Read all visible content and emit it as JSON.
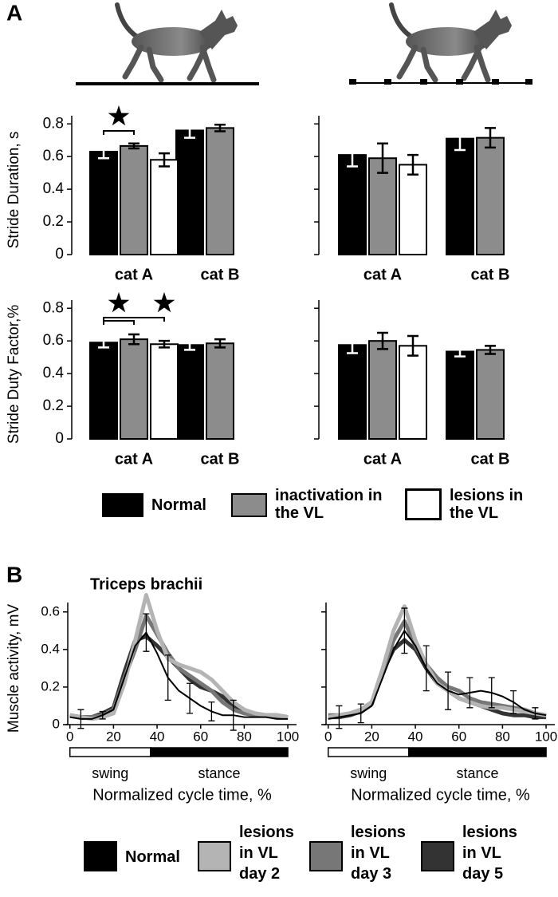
{
  "panel_labels": [
    "A",
    "B"
  ],
  "chart_data": [
    {
      "type": "bar",
      "ylabel": "Stride Duration, s",
      "categories": [
        "cat A",
        "cat B"
      ],
      "ylim": [
        0,
        0.85
      ],
      "yticks": [
        0,
        0.2,
        0.4,
        0.6,
        0.8
      ],
      "series": [
        {
          "name": "Normal",
          "color": "#000000",
          "values": [
            0.63,
            0.76
          ],
          "errors": [
            0.04,
            0.045
          ]
        },
        {
          "name": "inactivation in the VL",
          "color": "#8c8c8c",
          "values": [
            0.665,
            0.775
          ],
          "errors": [
            0.015,
            0.02
          ]
        },
        {
          "name": "lesions in the VL",
          "color": "#ffffff",
          "values": [
            0.58,
            null
          ],
          "errors": [
            0.04,
            null
          ]
        }
      ]
    },
    {
      "type": "bar",
      "categories": [
        "cat A",
        "cat B"
      ],
      "ylim": [
        0,
        0.85
      ],
      "yticks": [
        0,
        0.2,
        0.4,
        0.6,
        0.8
      ],
      "ytick_labels": false,
      "series": [
        {
          "name": "Normal",
          "color": "#000000",
          "values": [
            0.61,
            0.71
          ],
          "errors": [
            0.07,
            0.07
          ]
        },
        {
          "name": "inactivation in the VL",
          "color": "#8c8c8c",
          "values": [
            0.59,
            0.715
          ],
          "errors": [
            0.09,
            0.06
          ]
        },
        {
          "name": "lesions in the VL",
          "color": "#ffffff",
          "values": [
            0.55,
            null
          ],
          "errors": [
            0.06,
            null
          ]
        }
      ]
    },
    {
      "type": "bar",
      "ylabel": "Stride Duty Factor,%",
      "categories": [
        "cat A",
        "cat B"
      ],
      "ylim": [
        0,
        0.85
      ],
      "yticks": [
        0,
        0.2,
        0.4,
        0.6,
        0.8
      ],
      "series": [
        {
          "name": "Normal",
          "color": "#000000",
          "values": [
            0.59,
            0.575
          ],
          "errors": [
            0.03,
            0.03
          ]
        },
        {
          "name": "inactivation in the VL",
          "color": "#8c8c8c",
          "values": [
            0.61,
            0.585
          ],
          "errors": [
            0.03,
            0.025
          ]
        },
        {
          "name": "lesions in the VL",
          "color": "#ffffff",
          "values": [
            0.58,
            null
          ],
          "errors": [
            0.02,
            null
          ]
        }
      ]
    },
    {
      "type": "bar",
      "categories": [
        "cat A",
        "cat B"
      ],
      "ylim": [
        0,
        0.85
      ],
      "yticks": [
        0,
        0.2,
        0.4,
        0.6,
        0.8
      ],
      "ytick_labels": false,
      "series": [
        {
          "name": "Normal",
          "color": "#000000",
          "values": [
            0.575,
            0.535
          ],
          "errors": [
            0.05,
            0.03
          ]
        },
        {
          "name": "inactivation in the VL",
          "color": "#8c8c8c",
          "values": [
            0.6,
            0.545
          ],
          "errors": [
            0.05,
            0.025
          ]
        },
        {
          "name": "lesions in the VL",
          "color": "#ffffff",
          "values": [
            0.57,
            null
          ],
          "errors": [
            0.06,
            null
          ]
        }
      ]
    },
    {
      "type": "line",
      "title": "Triceps brachii",
      "ylabel": "Muscle activity, mV",
      "xlabel": "Normalized cycle time, %",
      "xlim": [
        -1,
        104
      ],
      "xticks": [
        0,
        20,
        40,
        60,
        80,
        100
      ],
      "ylim": [
        0,
        0.65
      ],
      "yticks": [
        0,
        0.2,
        0.4,
        0.6
      ],
      "x": [
        0,
        5,
        10,
        15,
        20,
        25,
        30,
        35,
        40,
        45,
        50,
        55,
        60,
        65,
        70,
        75,
        80,
        85,
        90,
        95,
        100
      ],
      "phases": [
        {
          "label": "swing",
          "start": 0,
          "end": 37,
          "color": "#ffffff"
        },
        {
          "label": "stance",
          "start": 37,
          "end": 100,
          "color": "#000000"
        }
      ],
      "series": [
        {
          "name": "Normal",
          "color": "#000000",
          "width": 2,
          "values": [
            0.04,
            0.03,
            0.03,
            0.05,
            0.08,
            0.25,
            0.42,
            0.49,
            0.38,
            0.25,
            0.18,
            0.14,
            0.1,
            0.07,
            0.05,
            0.05,
            0.04,
            0.04,
            0.04,
            0.03,
            0.03
          ],
          "errors": [
            null,
            0.05,
            null,
            0.02,
            null,
            null,
            null,
            0.1,
            null,
            0.12,
            null,
            0.08,
            null,
            0.05,
            null,
            0.08,
            null,
            null,
            null,
            null,
            null
          ]
        },
        {
          "name": "lesions in VL day 2",
          "color": "#b4b4b4",
          "width": 5,
          "values": [
            0.05,
            0.04,
            0.03,
            0.04,
            0.06,
            0.22,
            0.45,
            0.69,
            0.5,
            0.35,
            0.32,
            0.3,
            0.28,
            0.24,
            0.18,
            0.12,
            0.08,
            0.06,
            0.05,
            0.05,
            0.04
          ]
        },
        {
          "name": "lesions in VL day 3",
          "color": "#777777",
          "width": 5,
          "values": [
            0.05,
            0.04,
            0.04,
            0.05,
            0.08,
            0.25,
            0.4,
            0.58,
            0.48,
            0.38,
            0.3,
            0.26,
            0.22,
            0.18,
            0.12,
            0.08,
            0.06,
            0.05,
            0.05,
            0.04,
            0.04
          ]
        },
        {
          "name": "lesions in VL day 5",
          "color": "#333333",
          "width": 5,
          "values": [
            0.05,
            0.04,
            0.04,
            0.06,
            0.09,
            0.28,
            0.45,
            0.47,
            0.42,
            0.36,
            0.3,
            0.24,
            0.2,
            0.18,
            0.15,
            0.1,
            0.07,
            0.06,
            0.05,
            0.05,
            0.04
          ]
        }
      ]
    },
    {
      "type": "line",
      "xlabel": "Normalized cycle time, %",
      "xlim": [
        -1,
        104
      ],
      "xticks": [
        0,
        20,
        40,
        60,
        80,
        100
      ],
      "ylim": [
        0,
        0.65
      ],
      "yticks": [
        0,
        0.2,
        0.4,
        0.6
      ],
      "ytick_labels": false,
      "x": [
        0,
        5,
        10,
        15,
        20,
        25,
        30,
        35,
        40,
        45,
        50,
        55,
        60,
        65,
        70,
        75,
        80,
        85,
        90,
        95,
        100
      ],
      "phases": [
        {
          "label": "swing",
          "start": 0,
          "end": 37,
          "color": "#ffffff"
        },
        {
          "label": "stance",
          "start": 37,
          "end": 100,
          "color": "#000000"
        }
      ],
      "series": [
        {
          "name": "Normal",
          "color": "#000000",
          "width": 2,
          "values": [
            0.03,
            0.04,
            0.05,
            0.06,
            0.1,
            0.25,
            0.4,
            0.5,
            0.42,
            0.3,
            0.22,
            0.18,
            0.16,
            0.17,
            0.18,
            0.17,
            0.15,
            0.12,
            0.08,
            0.06,
            0.05
          ],
          "errors": [
            null,
            0.06,
            null,
            0.05,
            null,
            null,
            null,
            0.12,
            null,
            0.12,
            null,
            0.1,
            null,
            0.08,
            null,
            0.08,
            null,
            0.06,
            null,
            0.03,
            null
          ]
        },
        {
          "name": "lesions in VL day 2",
          "color": "#b4b4b4",
          "width": 5,
          "values": [
            0.04,
            0.05,
            0.06,
            0.08,
            0.12,
            0.3,
            0.5,
            0.63,
            0.45,
            0.32,
            0.22,
            0.18,
            0.14,
            0.12,
            0.1,
            0.09,
            0.09,
            0.08,
            0.07,
            0.06,
            0.05
          ]
        },
        {
          "name": "lesions in VL day 3",
          "color": "#777777",
          "width": 5,
          "values": [
            0.05,
            0.05,
            0.06,
            0.08,
            0.12,
            0.28,
            0.45,
            0.55,
            0.42,
            0.32,
            0.25,
            0.2,
            0.18,
            0.14,
            0.12,
            0.11,
            0.1,
            0.09,
            0.08,
            0.06,
            0.05
          ]
        },
        {
          "name": "lesions in VL day 5",
          "color": "#333333",
          "width": 5,
          "values": [
            0.04,
            0.04,
            0.05,
            0.07,
            0.11,
            0.28,
            0.4,
            0.45,
            0.4,
            0.3,
            0.22,
            0.18,
            0.14,
            0.12,
            0.1,
            0.08,
            0.06,
            0.05,
            0.05,
            0.04,
            0.04
          ]
        }
      ]
    }
  ]
}
